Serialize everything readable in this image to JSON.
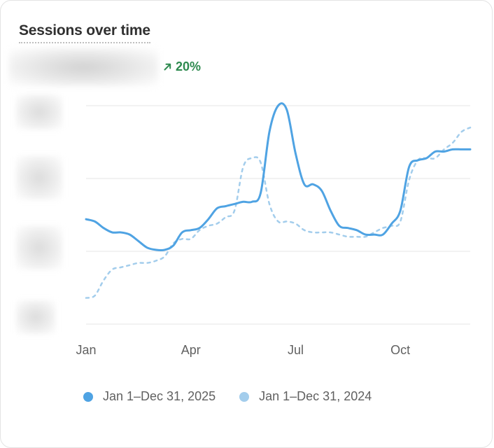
{
  "card": {
    "title": "Sessions over time",
    "change": {
      "value": "20%",
      "direction": "up",
      "color": "#2e8a4f",
      "icon": "arrow-up-right-icon"
    }
  },
  "colors": {
    "current": "#4fa3e3",
    "previous": "#a3cdec",
    "grid": "#e6e6e6"
  },
  "chart_data": {
    "type": "line",
    "title": "Sessions over time",
    "xlabel": "",
    "ylabel": "",
    "x_ticks": [
      "Jan",
      "Apr",
      "Jul",
      "Oct"
    ],
    "x_tick_positions": [
      0,
      3,
      6,
      9
    ],
    "ylim": [
      0,
      1
    ],
    "grid": true,
    "legend_position": "bottom",
    "series": [
      {
        "name": "Jan 1–Dec 31, 2025",
        "style": "solid",
        "x": [
          0,
          0.25,
          0.5,
          0.75,
          1,
          1.25,
          1.5,
          1.75,
          2,
          2.25,
          2.5,
          2.75,
          3,
          3.25,
          3.5,
          3.75,
          4,
          4.25,
          4.5,
          4.75,
          5,
          5.25,
          5.5,
          5.75,
          6,
          6.25,
          6.5,
          6.75,
          7,
          7.25,
          7.5,
          7.75,
          8,
          8.25,
          8.5,
          8.75,
          9,
          9.25,
          9.5,
          9.75,
          10,
          10.25,
          10.5,
          10.75,
          11
        ],
        "values": [
          0.48,
          0.47,
          0.44,
          0.42,
          0.42,
          0.41,
          0.38,
          0.35,
          0.34,
          0.34,
          0.36,
          0.42,
          0.43,
          0.44,
          0.48,
          0.53,
          0.54,
          0.55,
          0.56,
          0.56,
          0.6,
          0.88,
          1.0,
          0.98,
          0.78,
          0.64,
          0.64,
          0.61,
          0.52,
          0.45,
          0.44,
          0.43,
          0.41,
          0.41,
          0.41,
          0.46,
          0.52,
          0.72,
          0.75,
          0.76,
          0.79,
          0.79,
          0.8,
          0.8,
          0.8
        ]
      },
      {
        "name": "Jan 1–Dec 31, 2024",
        "style": "dashed",
        "x": [
          0,
          0.25,
          0.5,
          0.75,
          1,
          1.25,
          1.5,
          1.75,
          2,
          2.25,
          2.5,
          2.75,
          3,
          3.25,
          3.5,
          3.75,
          4,
          4.25,
          4.5,
          4.75,
          5,
          5.25,
          5.5,
          5.75,
          6,
          6.25,
          6.5,
          6.75,
          7,
          7.25,
          7.5,
          7.75,
          8,
          8.25,
          8.5,
          8.75,
          9,
          9.25,
          9.5,
          9.75,
          10,
          10.25,
          10.5,
          10.75,
          11
        ],
        "values": [
          0.12,
          0.13,
          0.2,
          0.25,
          0.26,
          0.27,
          0.28,
          0.28,
          0.29,
          0.31,
          0.37,
          0.39,
          0.39,
          0.43,
          0.45,
          0.46,
          0.49,
          0.52,
          0.72,
          0.76,
          0.74,
          0.55,
          0.47,
          0.47,
          0.46,
          0.43,
          0.42,
          0.42,
          0.42,
          0.41,
          0.4,
          0.4,
          0.4,
          0.42,
          0.44,
          0.45,
          0.47,
          0.66,
          0.75,
          0.76,
          0.76,
          0.8,
          0.83,
          0.88,
          0.9
        ]
      }
    ]
  }
}
